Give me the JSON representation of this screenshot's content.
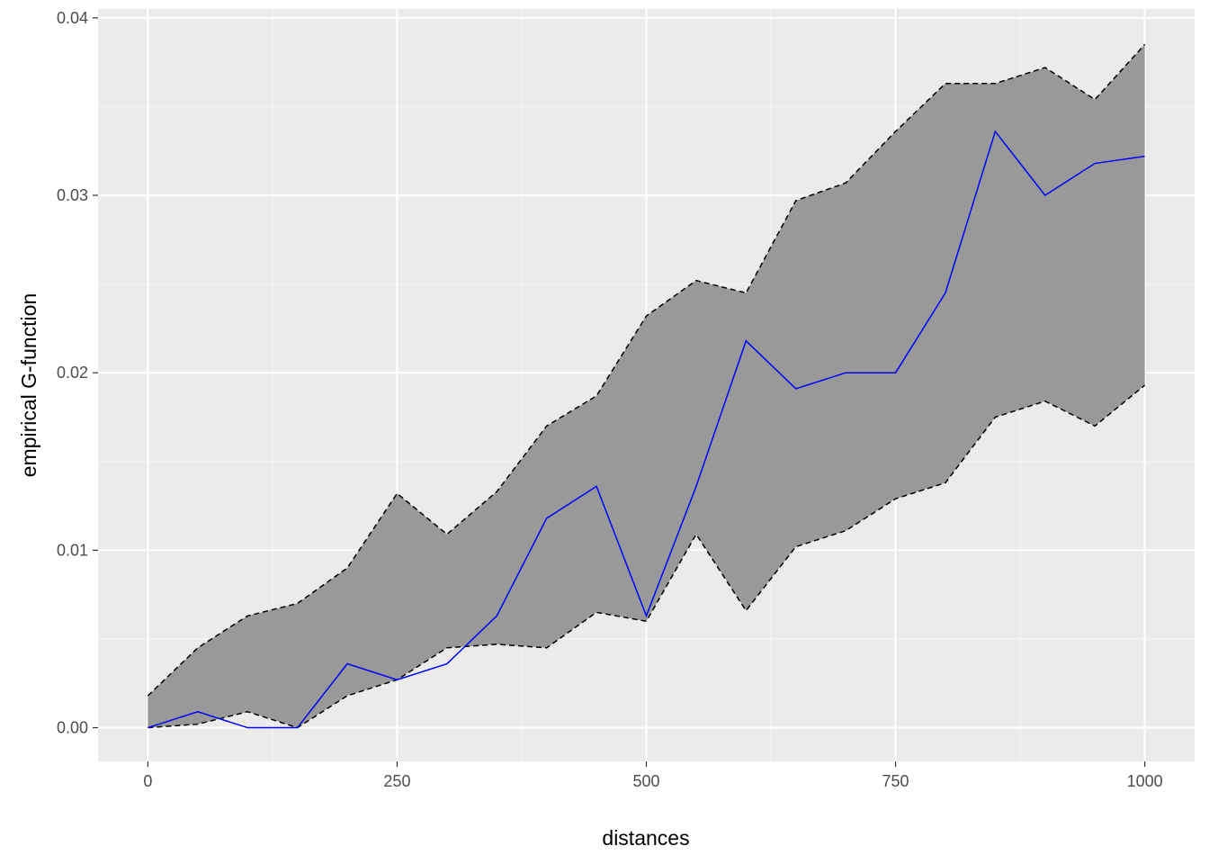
{
  "chart_data": {
    "type": "line",
    "title": "",
    "xlabel": "distances",
    "ylabel": "empirical G-function",
    "xlim": [
      -50,
      1050
    ],
    "ylim": [
      -0.0019,
      0.0405
    ],
    "x_ticks": [
      0,
      250,
      500,
      750,
      1000
    ],
    "x_tick_labels": [
      "0",
      "250",
      "500",
      "750",
      "1000"
    ],
    "y_ticks": [
      0.0,
      0.01,
      0.02,
      0.03,
      0.04
    ],
    "y_tick_labels": [
      "0.00",
      "0.01",
      "0.02",
      "0.03",
      "0.04"
    ],
    "x_minor_ticks": [
      125,
      375,
      625,
      875
    ],
    "y_minor_ticks": [
      0.005,
      0.015,
      0.025,
      0.035
    ],
    "grid": true,
    "x": [
      0,
      50,
      100,
      150,
      200,
      250,
      300,
      350,
      400,
      450,
      500,
      550,
      600,
      650,
      700,
      750,
      800,
      850,
      900,
      950,
      1000
    ],
    "series": [
      {
        "role": "observed",
        "values": [
          0.0,
          0.0009,
          0.0,
          0.0,
          0.0036,
          0.0027,
          0.0036,
          0.0063,
          0.0118,
          0.0136,
          0.0063,
          0.0136,
          0.0218,
          0.0191,
          0.02,
          0.02,
          0.0245,
          0.0336,
          0.03,
          0.0318,
          0.0322
        ]
      },
      {
        "role": "envelope-upper",
        "values": [
          0.0018,
          0.0045,
          0.0063,
          0.007,
          0.009,
          0.0132,
          0.0109,
          0.0133,
          0.017,
          0.0187,
          0.0232,
          0.0252,
          0.0245,
          0.0297,
          0.0307,
          0.0336,
          0.0363,
          0.0363,
          0.0372,
          0.0354,
          0.0385
        ]
      },
      {
        "role": "envelope-lower",
        "values": [
          0.0,
          0.0002,
          0.0009,
          0.0,
          0.0018,
          0.0027,
          0.0045,
          0.0047,
          0.0045,
          0.0065,
          0.006,
          0.0109,
          0.0066,
          0.0102,
          0.0111,
          0.0129,
          0.0138,
          0.0175,
          0.0184,
          0.017,
          0.0193
        ]
      }
    ],
    "colors": {
      "panel_background": "#ebebeb",
      "grid_major": "#ffffff",
      "grid_minor": "#f5f5f5",
      "envelope_fill": "#999999",
      "envelope_line": "#000000",
      "observed_line": "#0000ff"
    }
  }
}
